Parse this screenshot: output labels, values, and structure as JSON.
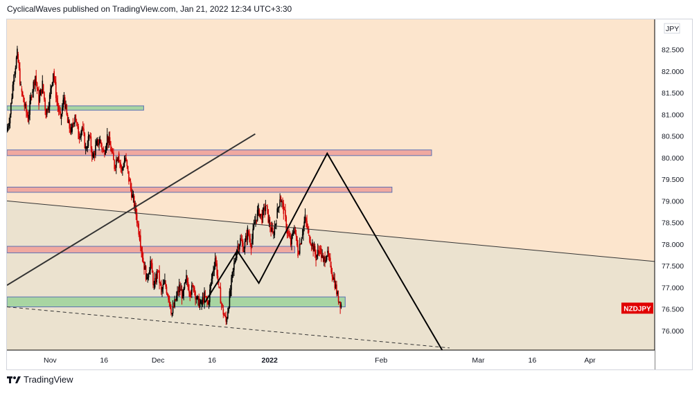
{
  "header": {
    "text": "CyclicalWaves published on TradingView.com, Jan 21, 2022 12:34 UTC+3:30"
  },
  "footer": {
    "brand": "TradingView",
    "logo_icon": "tradingview-logo-icon"
  },
  "chart_data": {
    "type": "candlestick",
    "symbol_label": "NZDJPY",
    "currency": "JPY",
    "x_axis": {
      "ticks": [
        {
          "t": 6,
          "label": "Nov"
        },
        {
          "t": 21,
          "label": "16"
        },
        {
          "t": 36,
          "label": "Dec"
        },
        {
          "t": 51,
          "label": "16"
        },
        {
          "t": 67,
          "label": "2022"
        },
        {
          "t": 98,
          "label": "Feb"
        },
        {
          "t": 125,
          "label": "Mar"
        },
        {
          "t": 140,
          "label": "16"
        },
        {
          "t": 156,
          "label": "Apr"
        }
      ],
      "range": [
        -6,
        174
      ]
    },
    "y_axis": {
      "ticks": [
        "76.000",
        "76.500",
        "77.000",
        "77.500",
        "78.000",
        "78.500",
        "79.000",
        "79.500",
        "80.000",
        "80.500",
        "81.000",
        "81.500",
        "82.000",
        "82.500"
      ],
      "range": [
        75.55,
        83.2
      ]
    },
    "price_path": [
      [
        -6,
        80.6
      ],
      [
        -5,
        81.0
      ],
      [
        -4,
        81.9
      ],
      [
        -3,
        82.4
      ],
      [
        -2,
        81.6
      ],
      [
        -1,
        81.2
      ],
      [
        0,
        80.9
      ],
      [
        1,
        81.5
      ],
      [
        2,
        81.9
      ],
      [
        3,
        81.3
      ],
      [
        4,
        81.7
      ],
      [
        5,
        81.0
      ],
      [
        6,
        81.4
      ],
      [
        7,
        82.0
      ],
      [
        8,
        81.3
      ],
      [
        9,
        80.9
      ],
      [
        10,
        81.4
      ],
      [
        11,
        80.8
      ],
      [
        12,
        80.6
      ],
      [
        13,
        81.0
      ],
      [
        14,
        80.5
      ],
      [
        15,
        80.7
      ],
      [
        16,
        80.2
      ],
      [
        17,
        80.5
      ],
      [
        18,
        80.0
      ],
      [
        19,
        80.3
      ],
      [
        20,
        80.4
      ],
      [
        21,
        80.1
      ],
      [
        22,
        80.5
      ],
      [
        23,
        80.2
      ],
      [
        24,
        79.8
      ],
      [
        25,
        80.1
      ],
      [
        26,
        79.7
      ],
      [
        27,
        80.0
      ],
      [
        28,
        79.5
      ],
      [
        29,
        79.1
      ],
      [
        30,
        78.7
      ],
      [
        31,
        78.2
      ],
      [
        32,
        77.6
      ],
      [
        33,
        77.2
      ],
      [
        34,
        77.6
      ],
      [
        35,
        77.0
      ],
      [
        36,
        77.4
      ],
      [
        37,
        76.9
      ],
      [
        38,
        77.1
      ],
      [
        39,
        76.8
      ],
      [
        40,
        76.4
      ],
      [
        41,
        76.7
      ],
      [
        42,
        77.0
      ],
      [
        43,
        76.8
      ],
      [
        44,
        77.2
      ],
      [
        45,
        76.9
      ],
      [
        46,
        77.0
      ],
      [
        47,
        76.7
      ],
      [
        48,
        76.6
      ],
      [
        49,
        76.8
      ],
      [
        50,
        76.6
      ],
      [
        51,
        77.2
      ],
      [
        52,
        77.7
      ],
      [
        53,
        77.0
      ],
      [
        54,
        76.5
      ],
      [
        55,
        76.2
      ],
      [
        56,
        76.8
      ],
      [
        57,
        77.4
      ],
      [
        58,
        77.9
      ],
      [
        59,
        78.1
      ],
      [
        60,
        77.9
      ],
      [
        61,
        78.3
      ],
      [
        62,
        78.0
      ],
      [
        63,
        78.5
      ],
      [
        64,
        78.8
      ],
      [
        65,
        78.6
      ],
      [
        66,
        78.9
      ],
      [
        67,
        78.5
      ],
      [
        68,
        78.2
      ],
      [
        69,
        78.6
      ],
      [
        70,
        79.1
      ],
      [
        71,
        78.8
      ],
      [
        72,
        78.3
      ],
      [
        73,
        78.0
      ],
      [
        74,
        78.4
      ],
      [
        75,
        77.8
      ],
      [
        76,
        78.2
      ],
      [
        77,
        78.6
      ],
      [
        78,
        78.2
      ],
      [
        79,
        78.0
      ],
      [
        80,
        77.7
      ],
      [
        81,
        77.9
      ],
      [
        82,
        77.6
      ],
      [
        83,
        77.8
      ],
      [
        84,
        77.5
      ],
      [
        85,
        77.2
      ],
      [
        86,
        76.8
      ],
      [
        87,
        76.6
      ]
    ],
    "zones": [
      {
        "name": "supply-zone-1",
        "t0": -6,
        "t1": 32,
        "p0": 81.1,
        "p1": 81.2,
        "color": "#a8d5a2"
      },
      {
        "name": "resistance-zone-1",
        "t0": -6,
        "t1": 112,
        "p0": 80.05,
        "p1": 80.18,
        "color": "#f0a9a0"
      },
      {
        "name": "resistance-zone-2",
        "t0": -6,
        "t1": 101,
        "p0": 79.2,
        "p1": 79.32,
        "color": "#f0a9a0"
      },
      {
        "name": "resistance-zone-3",
        "t0": -6,
        "t1": 74,
        "p0": 77.8,
        "p1": 77.95,
        "color": "#f0a9a0"
      },
      {
        "name": "support-zone",
        "t0": -6,
        "t1": 88,
        "p0": 76.55,
        "p1": 76.78,
        "color": "#a8d5a2"
      }
    ],
    "lines": [
      {
        "name": "rising-trendline",
        "t0": -6,
        "p0": 77.05,
        "t1": 63,
        "p1": 80.55,
        "color": "#333333",
        "width": 2,
        "dash": ""
      },
      {
        "name": "falling-channel-upper",
        "t0": -6,
        "p0": 79.0,
        "t1": 174,
        "p1": 77.6,
        "color": "#333333",
        "width": 1,
        "dash": ""
      },
      {
        "name": "falling-channel-lower",
        "t0": -6,
        "p0": 76.55,
        "t1": 117,
        "p1": 75.6,
        "color": "#333333",
        "width": 1,
        "dash": "5,4"
      }
    ],
    "projection": {
      "color": "#000000",
      "points": [
        [
          49,
          76.65
        ],
        [
          58,
          77.85
        ],
        [
          64,
          77.1
        ],
        [
          83,
          80.1
        ],
        [
          116,
          75.4
        ]
      ]
    },
    "lower_shade": {
      "t0": -6,
      "p0": 79.0,
      "t1": 174,
      "p1": 77.6,
      "color": "#ebe2cf"
    },
    "last_price": {
      "value": 76.52,
      "label": "NZDJPY",
      "bg": "#e00000"
    },
    "colors": {
      "background": "#fce5cd",
      "candle_up": "#000000",
      "candle_down": "#d30000",
      "axis_bg": "#ffffff"
    }
  }
}
